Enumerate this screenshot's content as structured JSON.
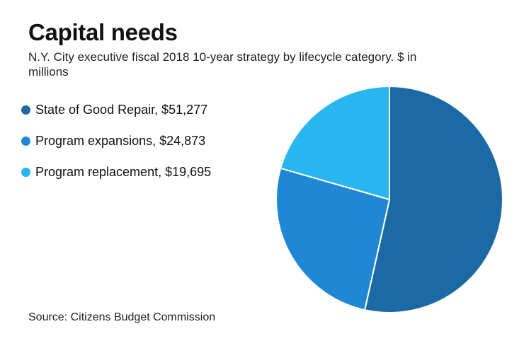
{
  "title": "Capital needs",
  "subtitle": "N.Y. City executive fiscal 2018 10-year strategy by lifecycle category. $ in millions",
  "source": "Source: Citizens Budget Commission",
  "colors": {
    "state_of_good_repair": "#1b6aa5",
    "program_expansions": "#1f87d4",
    "program_replacement": "#29b6ee"
  },
  "legend": [
    {
      "label": "State of Good Repair, $51,277",
      "color": "#1b6aa5"
    },
    {
      "label": "Program expansions, $24,873",
      "color": "#1f87d4"
    },
    {
      "label": "Program replacement, $19,695",
      "color": "#29b6ee"
    }
  ],
  "chart_data": {
    "type": "pie",
    "title": "Capital needs",
    "subtitle": "N.Y. City executive fiscal 2018 10-year strategy by lifecycle category. $ in millions",
    "categories": [
      "State of Good Repair",
      "Program expansions",
      "Program replacement"
    ],
    "values": [
      51277,
      24873,
      19695
    ],
    "colors": [
      "#1b6aa5",
      "#1f87d4",
      "#29b6ee"
    ],
    "legend_position": "left",
    "start_angle_deg": 0,
    "direction": "clockwise"
  }
}
